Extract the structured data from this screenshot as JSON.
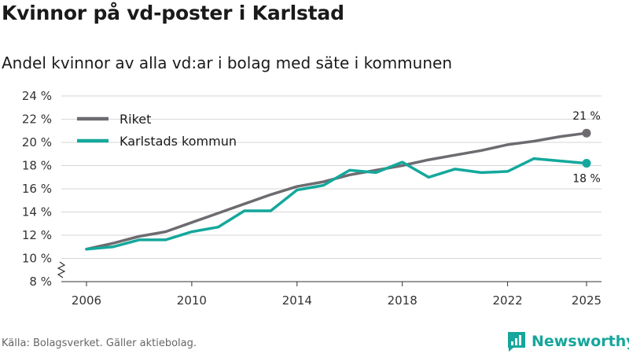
{
  "header": {
    "title": "Kvinnor på vd-poster i Karlstad",
    "subtitle": "Andel kvinnor av alla vd:ar i bolag med säte i kommunen"
  },
  "footer": {
    "source": "Källa: Bolagsverket. Gäller aktiebolag.",
    "brand": "Newsworthy"
  },
  "colors": {
    "riket": "#6d6b70",
    "karlstad": "#14a89c",
    "grid": "#d6d6d6",
    "axis": "#333333"
  },
  "chart_data": {
    "type": "line",
    "title": "Kvinnor på vd-poster i Karlstad",
    "subtitle": "Andel kvinnor av alla vd:ar i bolag med säte i kommunen",
    "xlabel": "",
    "ylabel": "",
    "ylim": [
      8,
      24
    ],
    "yticks": [
      8,
      10,
      12,
      14,
      16,
      18,
      20,
      22,
      24
    ],
    "ytick_labels": [
      "8 %",
      "10 %",
      "12 %",
      "14 %",
      "16 %",
      "18 %",
      "20 %",
      "22 %",
      "24 %"
    ],
    "xticks": [
      2006,
      2010,
      2014,
      2018,
      2022,
      2025
    ],
    "xtick_labels": [
      "2006",
      "2010",
      "2014",
      "2018",
      "2022",
      "2025"
    ],
    "axis_break": true,
    "grid": true,
    "legend_position": "top-left",
    "x": [
      2006,
      2007,
      2008,
      2009,
      2010,
      2011,
      2012,
      2013,
      2014,
      2015,
      2016,
      2017,
      2018,
      2019,
      2020,
      2021,
      2022,
      2023,
      2024,
      2025
    ],
    "series": [
      {
        "name": "Riket",
        "color": "#6d6b70",
        "end_label": "21 %",
        "values": [
          10.8,
          11.3,
          11.9,
          12.3,
          13.1,
          13.9,
          14.7,
          15.5,
          16.2,
          16.6,
          17.2,
          17.6,
          18.0,
          18.5,
          18.9,
          19.3,
          19.8,
          20.1,
          20.5,
          20.8
        ]
      },
      {
        "name": "Karlstads kommun",
        "color": "#14a89c",
        "end_label": "18 %",
        "values": [
          10.8,
          11.0,
          11.6,
          11.6,
          12.3,
          12.7,
          14.1,
          14.1,
          15.9,
          16.3,
          17.6,
          17.4,
          18.3,
          17.0,
          17.7,
          17.4,
          17.5,
          18.6,
          18.4,
          18.2
        ]
      }
    ]
  }
}
